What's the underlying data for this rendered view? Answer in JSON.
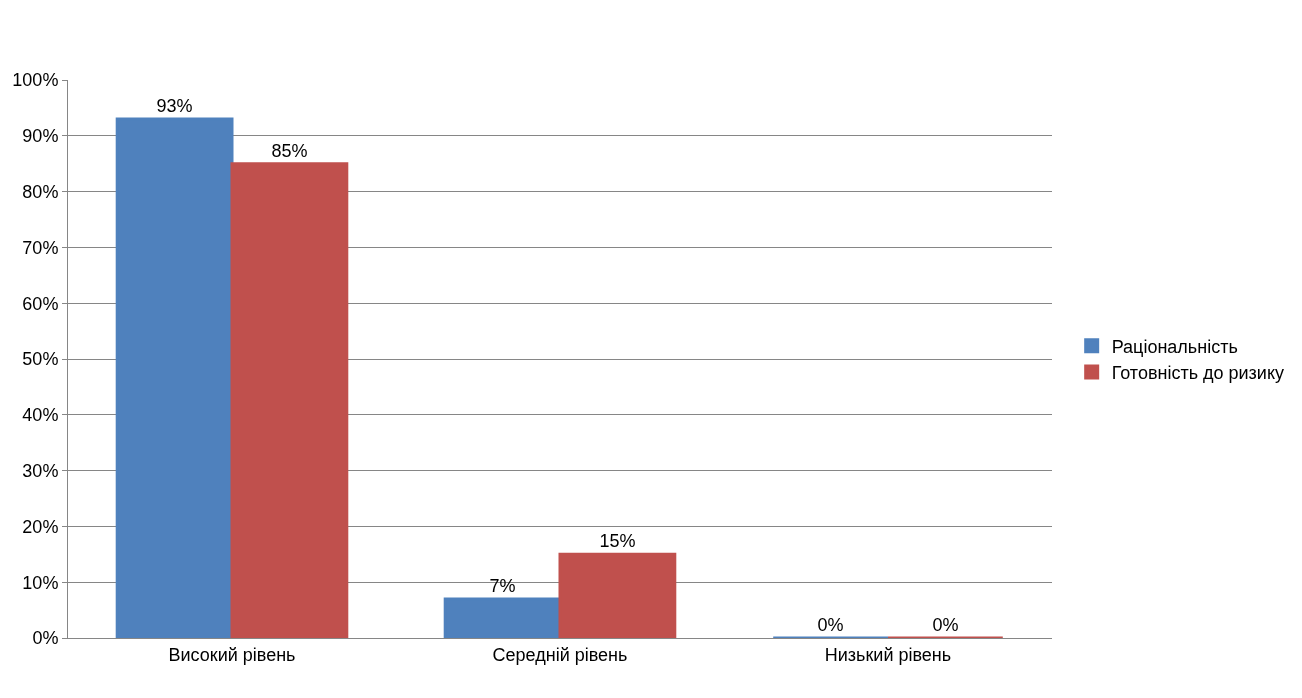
{
  "chart_data": {
    "type": "bar",
    "categories": [
      "Високий рівень",
      "Середній рівень",
      "Низький рівень"
    ],
    "series": [
      {
        "name": "Раціональність",
        "color": "#4f81bd",
        "values": [
          93,
          7,
          0
        ],
        "value_labels": [
          "93%",
          "7%",
          "0%"
        ]
      },
      {
        "name": "Готовність до ризику",
        "color": "#c0504d",
        "values": [
          85,
          15,
          0
        ],
        "value_labels": [
          "85%",
          "15%",
          "0%"
        ]
      }
    ],
    "ylim": [
      0,
      100
    ],
    "yticks": [
      {
        "value": 0,
        "label": "0%"
      },
      {
        "value": 10,
        "label": "10%"
      },
      {
        "value": 20,
        "label": "20%"
      },
      {
        "value": 30,
        "label": "30%"
      },
      {
        "value": 40,
        "label": "40%"
      },
      {
        "value": 50,
        "label": "50%"
      },
      {
        "value": 60,
        "label": "60%"
      },
      {
        "value": 70,
        "label": "70%"
      },
      {
        "value": 80,
        "label": "80%"
      },
      {
        "value": 90,
        "label": "90%"
      },
      {
        "value": 100,
        "label": "100%"
      }
    ],
    "grid": "y",
    "legend": "right"
  }
}
